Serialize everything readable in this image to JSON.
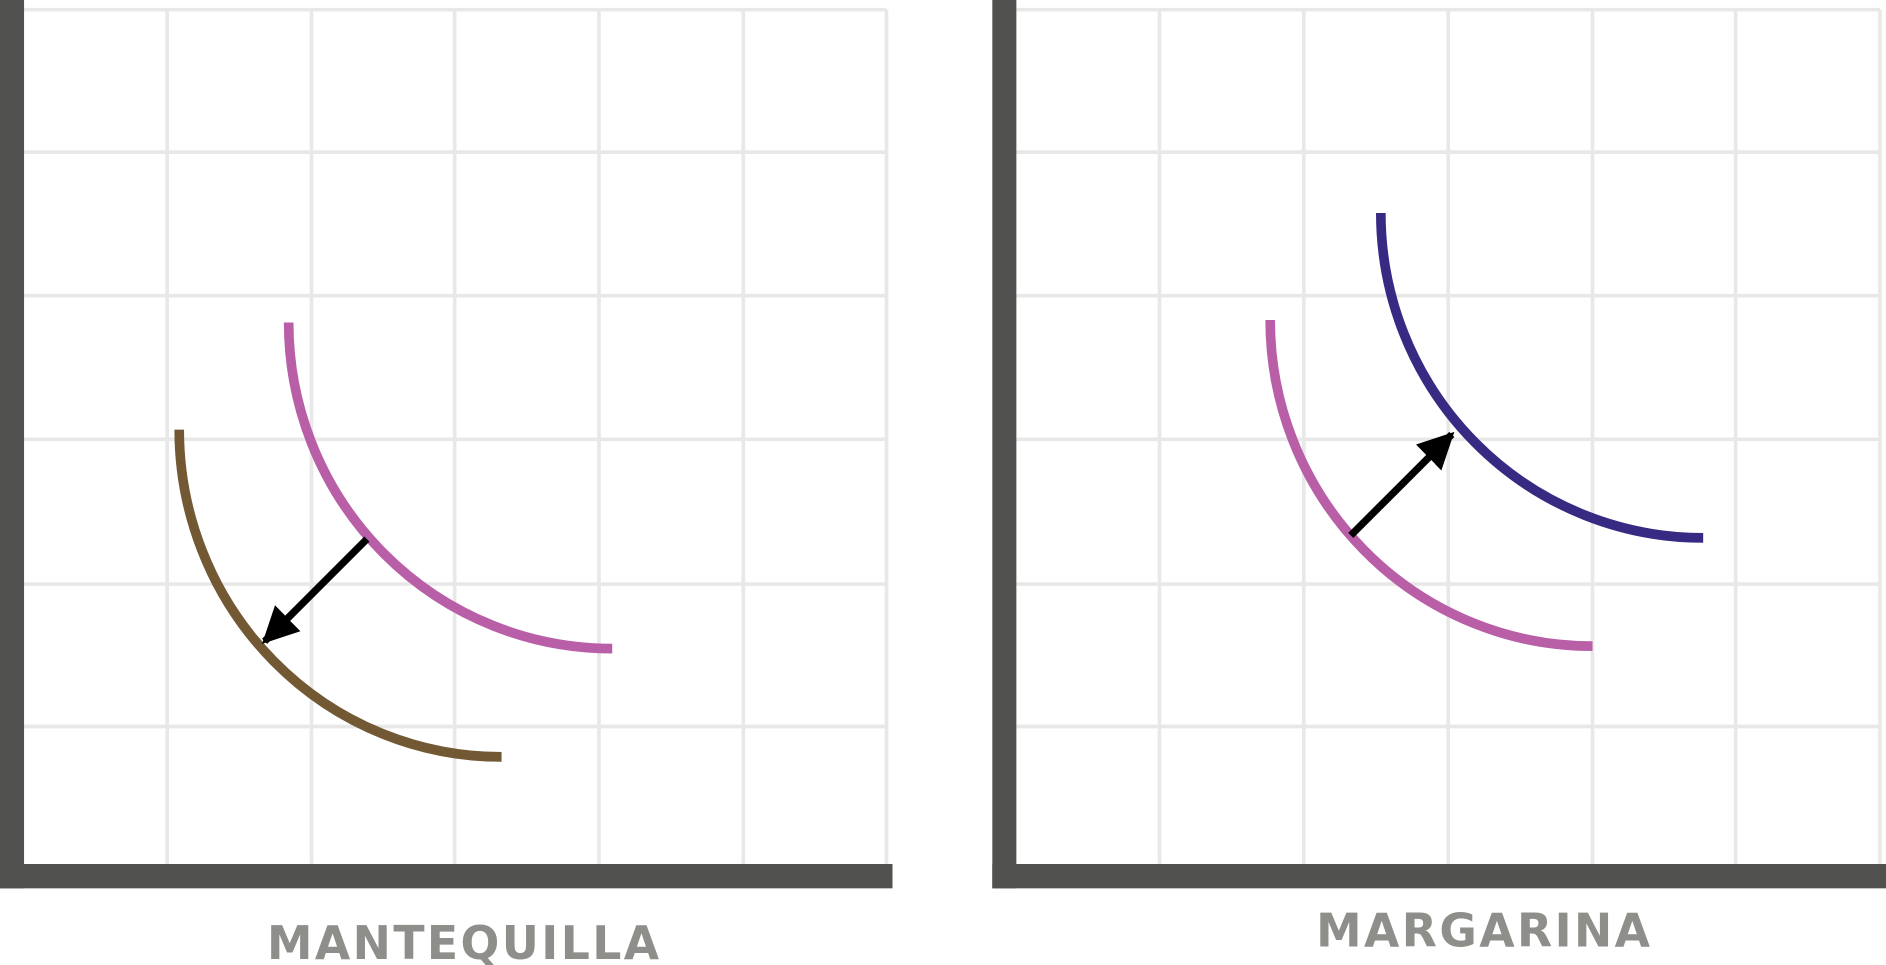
{
  "panels": [
    {
      "label": "MANTEQUILLA"
    },
    {
      "label": "MARGARINA"
    }
  ]
}
